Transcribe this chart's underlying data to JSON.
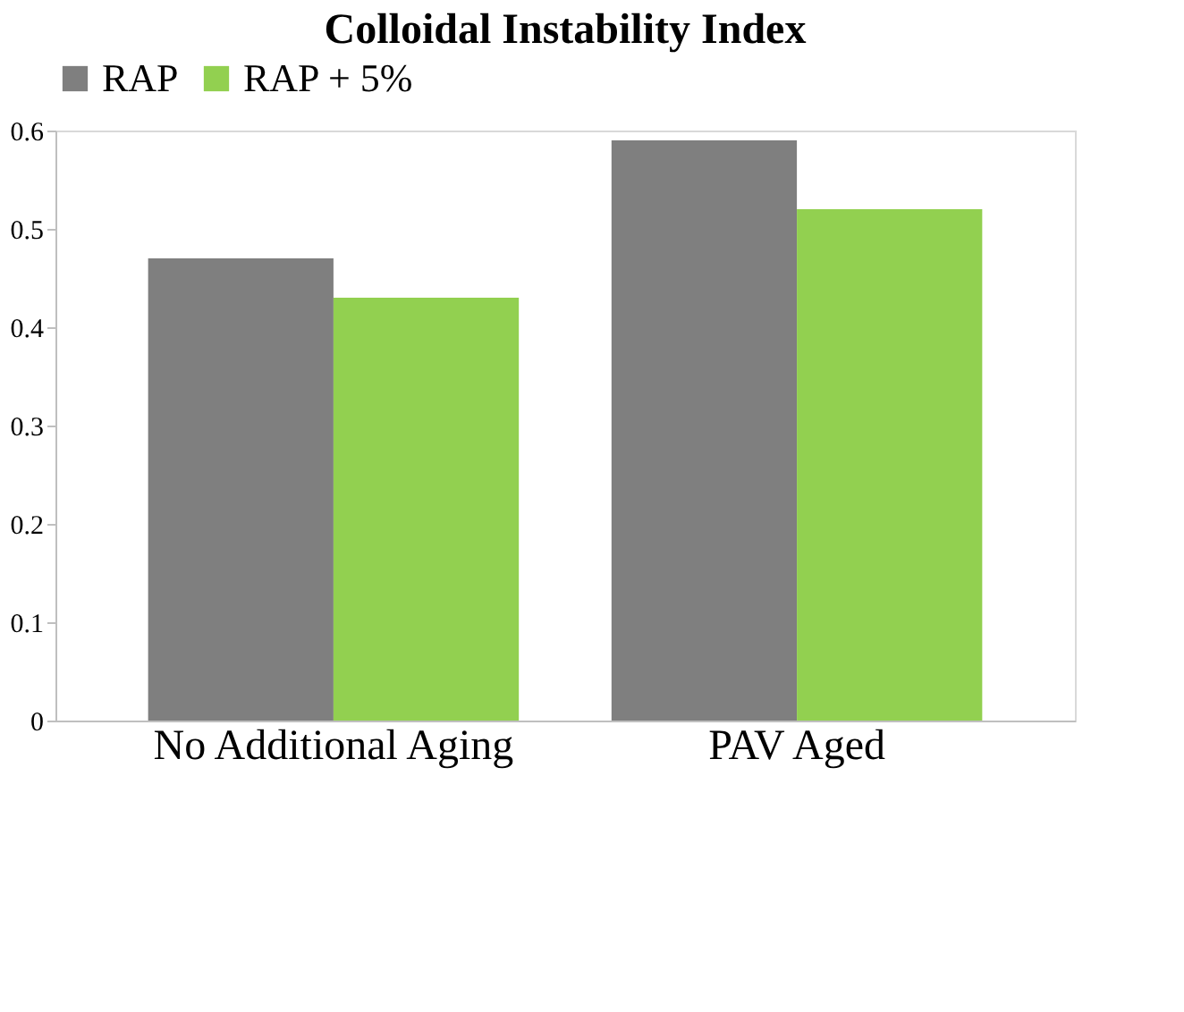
{
  "chart_data": {
    "type": "bar",
    "title": "Colloidal Instability Index",
    "categories": [
      "No Additional Aging",
      "PAV Aged"
    ],
    "series": [
      {
        "name": "RAP",
        "color": "#7f7f7f",
        "values": [
          0.47,
          0.59
        ]
      },
      {
        "name": "RAP + 5%",
        "color": "#92d050",
        "values": [
          0.43,
          0.52
        ]
      }
    ],
    "ylim": [
      0,
      0.6
    ],
    "yticks": [
      0,
      0.1,
      0.2,
      0.3,
      0.4,
      0.5,
      0.6
    ],
    "grid": false,
    "legend": "top"
  }
}
